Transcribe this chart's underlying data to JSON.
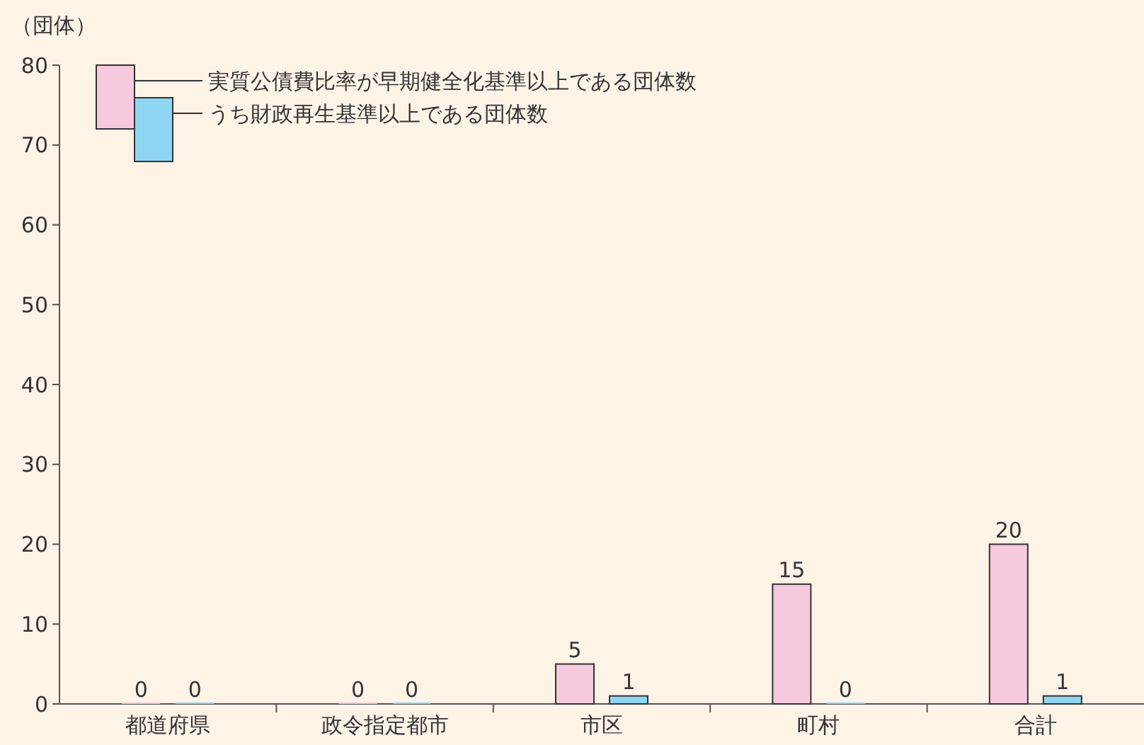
{
  "chart_data": {
    "type": "bar",
    "ylabel": "（団体）",
    "categories": [
      "都道府県",
      "政令指定都市",
      "市区",
      "町村",
      "合計"
    ],
    "series": [
      {
        "name": "実質公債費比率が早期健全化基準以上である団体数",
        "color": "#f7c9de",
        "values": [
          0,
          0,
          5,
          15,
          20
        ]
      },
      {
        "name": "うち財政再生基準以上である団体数",
        "color": "#8fd6f2",
        "values": [
          0,
          0,
          1,
          0,
          1
        ]
      }
    ],
    "ylim": [
      0,
      80
    ],
    "yticks": [
      0,
      10,
      20,
      30,
      40,
      50,
      60,
      70,
      80
    ],
    "data_labels": true,
    "legend": "top left",
    "grid": false
  }
}
